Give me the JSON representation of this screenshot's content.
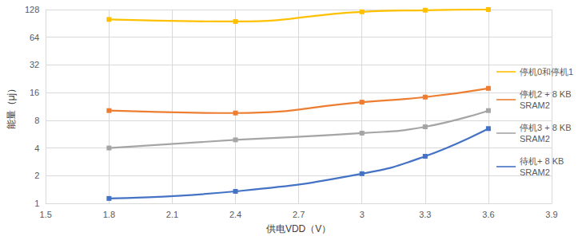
{
  "chart_data": {
    "type": "line",
    "xlabel": "供电VDD（V）",
    "ylabel": "能量（μj）",
    "x": [
      1.8,
      2.4,
      3.0,
      3.3,
      3.6
    ],
    "series": [
      {
        "name": "停机0和停机1",
        "color": "#ffc000",
        "values": [
          100,
          95,
          121,
          126,
          128
        ]
      },
      {
        "name": "停机2 + 8 KB SRAM2",
        "color": "#ed7d31",
        "values": [
          10.2,
          9.6,
          12.6,
          14.3,
          17.8
        ]
      },
      {
        "name": "停机3 + 8 KB SRAM2",
        "color": "#a5a5a5",
        "values": [
          4.0,
          4.9,
          5.8,
          6.8,
          10.2
        ]
      },
      {
        "name": "待机+ 8 KB SRAM2",
        "color": "#4472c4",
        "values": [
          1.13,
          1.35,
          2.1,
          3.25,
          6.5
        ]
      }
    ],
    "xlim": [
      1.5,
      3.9
    ],
    "xticks": [
      1.5,
      1.8,
      2.1,
      2.4,
      2.7,
      3,
      3.3,
      3.6,
      3.9
    ],
    "ylim": [
      1,
      128
    ],
    "yticks": [
      1,
      2,
      4,
      8,
      16,
      32,
      64,
      128
    ],
    "log": "y",
    "grid": true,
    "legend": "right",
    "marker": "square",
    "line_style": "smooth"
  }
}
